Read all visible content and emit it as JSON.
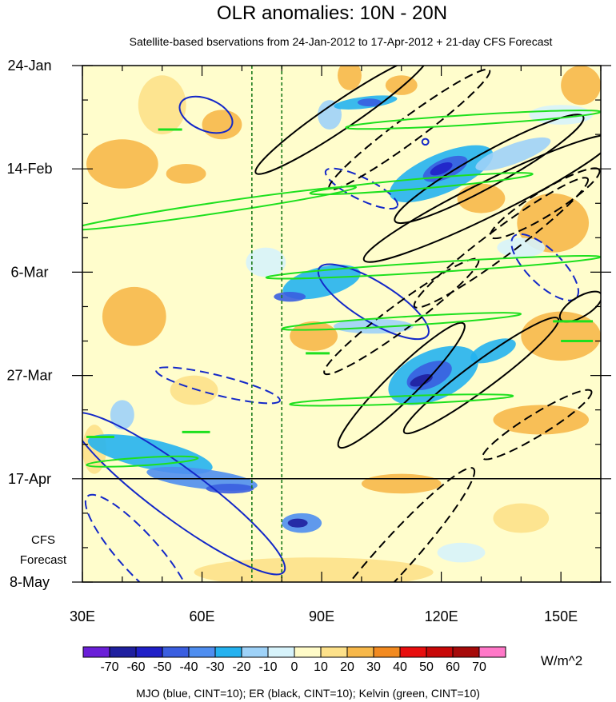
{
  "chart_data": {
    "type": "heatmap",
    "title": "OLR anomalies: 10N - 20N",
    "subtitle": "Satellite-based bservations from 24-Jan-2012 to 17-Apr-2012 + 21-day CFS Forecast",
    "x_axis": {
      "unit": "degrees east longitude",
      "range": [
        30,
        160
      ],
      "tick_labels": [
        {
          "value": 30,
          "label": "30E"
        },
        {
          "value": 60,
          "label": "60E"
        },
        {
          "value": 90,
          "label": "90E"
        },
        {
          "value": 120,
          "label": "120E"
        },
        {
          "value": 150,
          "label": "150E"
        }
      ],
      "minor_step": 10
    },
    "y_axis": {
      "unit": "day offset from 24-Jan-2012",
      "range": [
        0,
        105
      ],
      "tick_labels": [
        {
          "value": 0,
          "label": "24-Jan"
        },
        {
          "value": 21,
          "label": "14-Feb"
        },
        {
          "value": 42,
          "label": "6-Mar"
        },
        {
          "value": 63,
          "label": "27-Mar"
        },
        {
          "value": 84,
          "label": "17-Apr"
        },
        {
          "value": 105,
          "label": "8-May"
        }
      ],
      "minor_step": 7
    },
    "forecast_label": "CFS\nForecast",
    "forecast_start_day": 84,
    "reference_lines_lon": [
      72.5,
      80
    ],
    "colorbar": {
      "units": "W/m^2",
      "labels": [
        "-70",
        "-60",
        "-50",
        "-40",
        "-30",
        "-20",
        "-10",
        "0",
        "10",
        "20",
        "30",
        "40",
        "50",
        "60",
        "70"
      ],
      "colors": [
        "#6a1fd8",
        "#1f1f9f",
        "#2020c8",
        "#3a5ee0",
        "#4f8ef0",
        "#25b2f0",
        "#9ed2f8",
        "#d7f3fb",
        "#fffbc8",
        "#fde18a",
        "#f7b84a",
        "#f28a20",
        "#e80e0e",
        "#c80808",
        "#a60a0a",
        "#ff78c8"
      ]
    },
    "background_color": "#fffdcc",
    "anomaly_regions": [
      {
        "lon": 88,
        "day": 103,
        "dlon": 30,
        "dday": 3,
        "tilt": 0,
        "value": 15
      },
      {
        "lon": 40,
        "day": 20,
        "dlon": 9,
        "dday": 5,
        "tilt": 0,
        "value": 20
      },
      {
        "lon": 50,
        "day": 8,
        "dlon": 6,
        "dday": 6,
        "tilt": 0,
        "value": 18
      },
      {
        "lon": 43,
        "day": 51,
        "dlon": 8,
        "dday": 6,
        "tilt": 0,
        "value": 28
      },
      {
        "lon": 56,
        "day": 22,
        "dlon": 5,
        "dday": 2,
        "tilt": 0,
        "value": 20
      },
      {
        "lon": 65,
        "day": 12,
        "dlon": 5,
        "dday": 3,
        "tilt": 0,
        "value": 20
      },
      {
        "lon": 76,
        "day": 40,
        "dlon": 5,
        "dday": 3,
        "tilt": 0,
        "value": -10
      },
      {
        "lon": 97,
        "day": 2,
        "dlon": 3,
        "dday": 3,
        "tilt": 0,
        "value": 28
      },
      {
        "lon": 110,
        "day": 4,
        "dlon": 4,
        "dday": 2,
        "tilt": 0,
        "value": 22
      },
      {
        "lon": 155,
        "day": 4,
        "dlon": 5,
        "dday": 4,
        "tilt": 0,
        "value": 25
      },
      {
        "lon": 148,
        "day": 32,
        "dlon": 9,
        "dday": 6,
        "tilt": 0,
        "value": 25
      },
      {
        "lon": 130,
        "day": 27,
        "dlon": 6,
        "dday": 3,
        "tilt": 0,
        "value": 20
      },
      {
        "lon": 88,
        "day": 55,
        "dlon": 6,
        "dday": 3,
        "tilt": 0,
        "value": 25
      },
      {
        "lon": 150,
        "day": 55,
        "dlon": 10,
        "dday": 5,
        "tilt": 0,
        "value": 22
      },
      {
        "lon": 145,
        "day": 72,
        "dlon": 12,
        "dday": 3,
        "tilt": 0,
        "value": 20
      },
      {
        "lon": 110,
        "day": 85,
        "dlon": 10,
        "dday": 2,
        "tilt": 0,
        "value": 22
      },
      {
        "lon": 58,
        "day": 66,
        "dlon": 6,
        "dday": 3,
        "tilt": 0,
        "value": 18
      },
      {
        "lon": 33,
        "day": 78,
        "dlon": 3,
        "dday": 5,
        "tilt": 0,
        "value": 15
      },
      {
        "lon": 140,
        "day": 92,
        "dlon": 7,
        "dday": 3,
        "tilt": 0,
        "value": 15
      },
      {
        "lon": 92,
        "day": 10,
        "dlon": 3,
        "dday": 3,
        "tilt": 0,
        "value": -15
      },
      {
        "lon": 150,
        "day": 10,
        "dlon": 8,
        "dday": 2,
        "tilt": 0,
        "value": -10
      },
      {
        "lon": 101,
        "day": 7.5,
        "dlon": 8,
        "dday": 1.2,
        "tilt": -0.1,
        "value": -30
      },
      {
        "lon": 102,
        "day": 7.5,
        "dlon": 3,
        "dday": 0.8,
        "tilt": 0,
        "value": -50
      },
      {
        "lon": 120,
        "day": 22,
        "dlon": 14,
        "dday": 4,
        "tilt": -0.35,
        "value": -30
      },
      {
        "lon": 121,
        "day": 21,
        "dlon": 6,
        "dday": 2,
        "tilt": -0.35,
        "value": -50
      },
      {
        "lon": 120,
        "day": 21,
        "dlon": 3,
        "dday": 1,
        "tilt": -0.35,
        "value": -60
      },
      {
        "lon": 138,
        "day": 18,
        "dlon": 10,
        "dday": 2,
        "tilt": -0.3,
        "value": -20
      },
      {
        "lon": 90,
        "day": 44,
        "dlon": 10,
        "dday": 3,
        "tilt": -0.2,
        "value": -30
      },
      {
        "lon": 82,
        "day": 47,
        "dlon": 4,
        "dday": 1,
        "tilt": 0,
        "value": -50
      },
      {
        "lon": 103,
        "day": 53,
        "dlon": 10,
        "dday": 1.5,
        "tilt": 0,
        "value": -20
      },
      {
        "lon": 118,
        "day": 63,
        "dlon": 12,
        "dday": 5,
        "tilt": -0.35,
        "value": -30
      },
      {
        "lon": 117,
        "day": 63,
        "dlon": 6,
        "dday": 2.5,
        "tilt": -0.35,
        "value": -50
      },
      {
        "lon": 115,
        "day": 64,
        "dlon": 3,
        "dday": 1,
        "tilt": -0.3,
        "value": -70
      },
      {
        "lon": 133,
        "day": 58,
        "dlon": 6,
        "dday": 2,
        "tilt": -0.3,
        "value": -30
      },
      {
        "lon": 47,
        "day": 79,
        "dlon": 16,
        "dday": 3,
        "tilt": 0.18,
        "value": -30
      },
      {
        "lon": 60,
        "day": 84,
        "dlon": 14,
        "dday": 2,
        "tilt": 0.1,
        "value": -35
      },
      {
        "lon": 67,
        "day": 86,
        "dlon": 6,
        "dday": 1,
        "tilt": 0,
        "value": -50
      },
      {
        "lon": 85,
        "day": 93,
        "dlon": 5,
        "dday": 2,
        "tilt": 0,
        "value": -40
      },
      {
        "lon": 84,
        "day": 93,
        "dlon": 2.5,
        "dday": 0.9,
        "tilt": 0,
        "value": -70
      },
      {
        "lon": 40,
        "day": 71,
        "dlon": 3,
        "dday": 3,
        "tilt": 0,
        "value": -15
      },
      {
        "lon": 125,
        "day": 99,
        "dlon": 6,
        "dday": 2,
        "tilt": 0,
        "value": -10
      },
      {
        "lon": 140,
        "day": 37,
        "dlon": 6,
        "dday": 2,
        "tilt": 0,
        "value": -10
      }
    ],
    "contours": [
      {
        "group": "MJO",
        "color": "#1428c8",
        "dashed": false,
        "lon": 61,
        "day": 10,
        "dlon": 7,
        "dday": 3.2,
        "tilt": 0.35
      },
      {
        "group": "MJO",
        "color": "#1428c8",
        "dashed": false,
        "lon": 103,
        "day": 48,
        "dlon": 16,
        "dday": 4,
        "tilt": 0.5
      },
      {
        "group": "MJO",
        "color": "#1428c8",
        "dashed": false,
        "lon": 54,
        "day": 87,
        "dlon": 33,
        "dday": 5.2,
        "tilt": 0.6
      },
      {
        "group": "MJO",
        "color": "#1428c8",
        "dashed": false,
        "lon": 116,
        "day": 15.5,
        "dlon": 0.8,
        "dday": 0.6,
        "tilt": 0
      },
      {
        "group": "MJO",
        "color": "#1428c8",
        "dashed": true,
        "lon": 100,
        "day": 25,
        "dlon": 10,
        "dday": 2.2,
        "tilt": 0.4
      },
      {
        "group": "MJO",
        "color": "#1428c8",
        "dashed": true,
        "lon": 64,
        "day": 65,
        "dlon": 16,
        "dday": 2,
        "tilt": 0.2
      },
      {
        "group": "MJO",
        "color": "#1428c8",
        "dashed": true,
        "lon": 146,
        "day": 41,
        "dlon": 11,
        "dday": 3.5,
        "tilt": 0.8
      },
      {
        "group": "MJO",
        "color": "#1428c8",
        "dashed": true,
        "lon": 44,
        "day": 99,
        "dlon": 19,
        "dday": 4,
        "tilt": 0.9
      },
      {
        "group": "ER",
        "color": "#000000",
        "dashed": false,
        "lon": 95,
        "day": 10,
        "dlon": 26,
        "dday": 2.8,
        "tilt": -0.55
      },
      {
        "group": "ER",
        "color": "#000000",
        "dashed": false,
        "lon": 132,
        "day": 21,
        "dlon": 27,
        "dday": 3.4,
        "tilt": -0.45
      },
      {
        "group": "ER",
        "color": "#000000",
        "dashed": false,
        "lon": 132,
        "day": 27,
        "dlon": 35,
        "dday": 3.5,
        "tilt": -0.4
      },
      {
        "group": "ER",
        "color": "#000000",
        "dashed": false,
        "lon": 110,
        "day": 65,
        "dlon": 22,
        "dday": 3,
        "tilt": -0.8
      },
      {
        "group": "ER",
        "color": "#000000",
        "dashed": false,
        "lon": 130,
        "day": 63,
        "dlon": 24,
        "dday": 2.8,
        "tilt": -0.6
      },
      {
        "group": "ER",
        "color": "#000000",
        "dashed": false,
        "lon": 155,
        "day": 49,
        "dlon": 6,
        "dday": 2,
        "tilt": -0.5
      },
      {
        "group": "ER",
        "color": "#000000",
        "dashed": true,
        "lon": 112,
        "day": 13,
        "dlon": 25,
        "dday": 2.5,
        "tilt": -0.6
      },
      {
        "group": "ER",
        "color": "#000000",
        "dashed": true,
        "lon": 135,
        "day": 36,
        "dlon": 27,
        "dday": 2.8,
        "tilt": -0.6
      },
      {
        "group": "ER",
        "color": "#000000",
        "dashed": true,
        "lon": 110,
        "day": 51,
        "dlon": 24,
        "dday": 2.6,
        "tilt": -0.6
      },
      {
        "group": "ER",
        "color": "#000000",
        "dashed": true,
        "lon": 144,
        "day": 73,
        "dlon": 16,
        "dday": 2.2,
        "tilt": -0.5
      },
      {
        "group": "ER",
        "color": "#000000",
        "dashed": true,
        "lon": 108,
        "day": 100,
        "dlon": 30,
        "dday": 3.5,
        "tilt": -0.9
      },
      {
        "group": "ER",
        "color": "#000000",
        "dashed": true,
        "lon": 146,
        "day": 28,
        "dlon": 16,
        "dday": 2.5,
        "tilt": -0.5
      },
      {
        "group": "Kelvin",
        "color": "#1ee01e",
        "dashed": false,
        "lon": 128,
        "day": 11,
        "dlon": 32,
        "dday": 1,
        "tilt": -0.05
      },
      {
        "group": "Kelvin",
        "color": "#1ee01e",
        "dashed": false,
        "lon": 115,
        "day": 24,
        "dlon": 28,
        "dday": 1,
        "tilt": -0.07
      },
      {
        "group": "Kelvin",
        "color": "#1ee01e",
        "dashed": false,
        "lon": 63,
        "day": 29,
        "dlon": 36,
        "dday": 1.1,
        "tilt": -0.12
      },
      {
        "group": "Kelvin",
        "color": "#1ee01e",
        "dashed": false,
        "lon": 118,
        "day": 41,
        "dlon": 42,
        "dday": 1,
        "tilt": -0.05
      },
      {
        "group": "Kelvin",
        "color": "#1ee01e",
        "dashed": false,
        "lon": 110,
        "day": 52,
        "dlon": 30,
        "dday": 0.9,
        "tilt": -0.05
      },
      {
        "group": "Kelvin",
        "color": "#1ee01e",
        "dashed": false,
        "lon": 110,
        "day": 68,
        "dlon": 28,
        "dday": 0.8,
        "tilt": -0.03
      },
      {
        "group": "Kelvin",
        "color": "#1ee01e",
        "dashed": false,
        "lon": 45,
        "day": 80.5,
        "dlon": 14,
        "dday": 0.8,
        "tilt": -0.05
      }
    ],
    "kelvin_segments": [
      {
        "lon1": 49,
        "lon2": 55,
        "day": 13
      },
      {
        "lon1": 31,
        "lon2": 38,
        "day": 75.5
      },
      {
        "lon1": 55,
        "lon2": 62,
        "day": 74.5
      },
      {
        "lon1": 86,
        "lon2": 92,
        "day": 58.5
      },
      {
        "lon1": 148,
        "lon2": 158,
        "day": 52
      },
      {
        "lon1": 150,
        "lon2": 158,
        "day": 56
      }
    ],
    "footer": "MJO (blue, CINT=10); ER (black, CINT=10); Kelvin (green, CINT=10)"
  }
}
